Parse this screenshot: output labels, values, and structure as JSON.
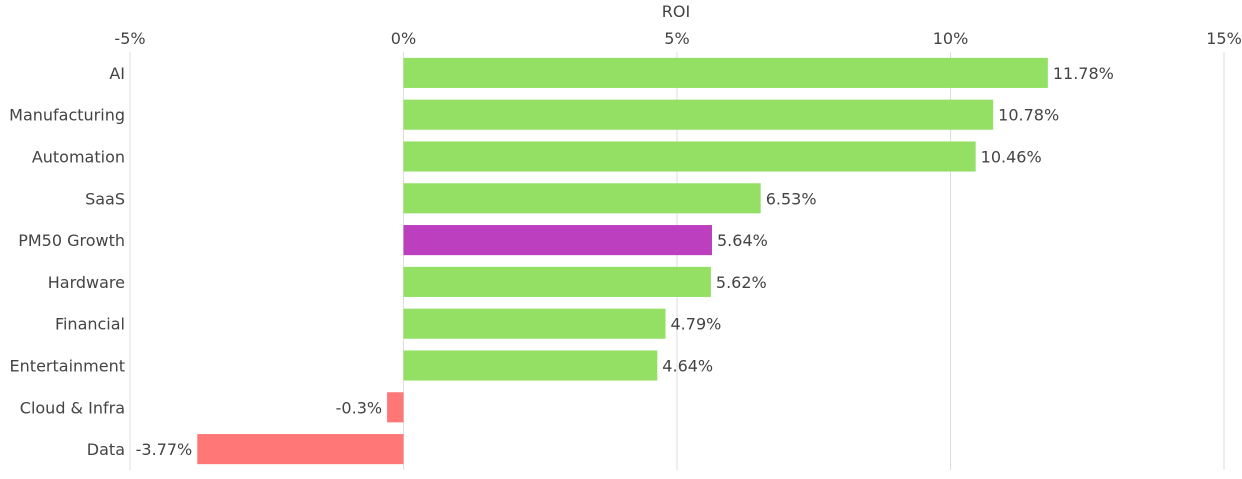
{
  "chart_data": {
    "type": "bar",
    "orientation": "horizontal",
    "xlabel": "ROI",
    "xlim": [
      -5,
      15
    ],
    "xticks": [
      -5,
      0,
      5,
      10,
      15
    ],
    "xtick_labels": [
      "-5%",
      "0%",
      "5%",
      "10%",
      "15%"
    ],
    "grid": true,
    "categories": [
      "AI",
      "Manufacturing",
      "Automation",
      "SaaS",
      "PM50 Growth",
      "Hardware",
      "Financial",
      "Entertainment",
      "Cloud & Infra",
      "Data"
    ],
    "values": [
      11.78,
      10.78,
      10.46,
      6.53,
      5.64,
      5.62,
      4.79,
      4.64,
      -0.3,
      -3.77
    ],
    "value_labels": [
      "11.78%",
      "10.78%",
      "10.46%",
      "6.53%",
      "5.64%",
      "5.62%",
      "4.79%",
      "4.64%",
      "-0.3%",
      "-3.77%"
    ],
    "colors": {
      "positive": "#94e065",
      "highlight": "#bb3fbf",
      "negative": "#ff7777"
    },
    "highlight_category": "PM50 Growth"
  }
}
